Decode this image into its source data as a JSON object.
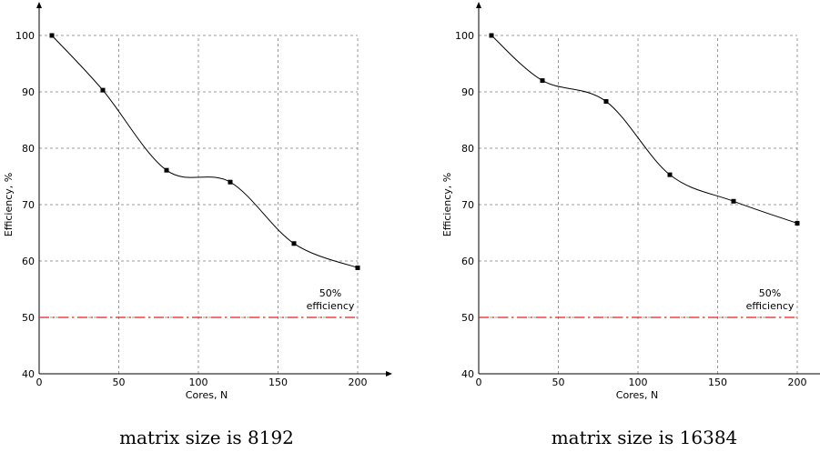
{
  "chart_data": [
    {
      "type": "line",
      "title": "",
      "caption": "matrix size is 8192",
      "xlabel": "Cores, N",
      "ylabel": "Efficiency, %",
      "xlim": [
        0,
        200
      ],
      "ylim": [
        40,
        100
      ],
      "xticks": [
        "0",
        "50",
        "100",
        "150",
        "200"
      ],
      "yticks": [
        "40",
        "50",
        "60",
        "70",
        "80",
        "90",
        "100"
      ],
      "grid": true,
      "x": [
        8,
        40,
        80,
        120,
        160,
        200
      ],
      "series": [
        {
          "values": [
            100,
            90.3,
            76.1,
            74.0,
            63.1,
            58.8
          ]
        }
      ],
      "reference_line": {
        "y": 50,
        "color": "#e3211c",
        "label_lines": [
          "50%",
          "efficiency"
        ]
      }
    },
    {
      "type": "line",
      "title": "",
      "caption": "matrix size is 16384",
      "xlabel": "Cores, N",
      "ylabel": "Efficiency, %",
      "xlim": [
        0,
        200
      ],
      "ylim": [
        40,
        100
      ],
      "xticks": [
        "0",
        "50",
        "100",
        "150",
        "200"
      ],
      "yticks": [
        "40",
        "50",
        "60",
        "70",
        "80",
        "90",
        "100"
      ],
      "grid": true,
      "x": [
        8,
        40,
        80,
        120,
        160,
        200
      ],
      "series": [
        {
          "values": [
            100,
            92.0,
            88.3,
            75.3,
            70.6,
            66.7
          ]
        }
      ],
      "reference_line": {
        "y": 50,
        "color": "#e3211c",
        "label_lines": [
          "50%",
          "efficiency"
        ]
      }
    }
  ]
}
